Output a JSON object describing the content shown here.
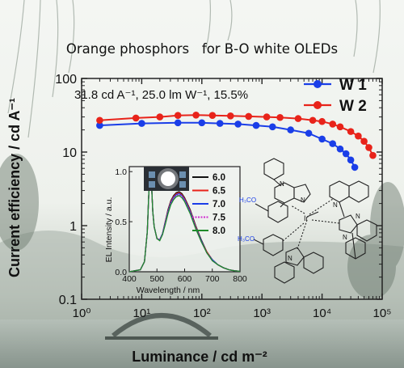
{
  "figure": {
    "title": "Orange phosphors   for B-O white OLEDs",
    "annotation": "31.8 cd A⁻¹, 25.0 lm W⁻¹, 15.5%",
    "xlabel": "Luminance / cd m⁻²",
    "ylabel": "Current efficiency / cd A⁻¹",
    "x_ticks": [
      "10⁰",
      "10¹",
      "10²",
      "10³",
      "10⁴",
      "10⁵"
    ],
    "y_ticks": [
      "0.1",
      "1",
      "10",
      "100"
    ],
    "colors": {
      "W1": "#1a3ee8",
      "W2": "#e8231a"
    },
    "molecule_labels": [
      "H₃CO",
      "H₃CO",
      "N",
      "N",
      "N",
      "N",
      "N",
      "N",
      "Ir"
    ]
  },
  "chart_data": [
    {
      "type": "line",
      "xscale": "log",
      "yscale": "log",
      "xlim": [
        1,
        100000
      ],
      "ylim": [
        0.1,
        100
      ],
      "legend": "top-right",
      "grid": false,
      "series": [
        {
          "name": "W 1",
          "color": "#1a3ee8",
          "marker": "circle",
          "x": [
            2,
            10,
            40,
            100,
            200,
            400,
            800,
            1500,
            3000,
            6000,
            10000,
            15000,
            20000,
            25000,
            30000,
            35000
          ],
          "y": [
            23,
            24.5,
            25,
            25,
            24.5,
            24,
            23,
            22,
            20,
            18,
            15,
            13,
            11,
            9.5,
            7.8,
            6.2
          ]
        },
        {
          "name": "W 2",
          "color": "#e8231a",
          "marker": "circle",
          "x": [
            2,
            8,
            20,
            40,
            80,
            150,
            300,
            600,
            1200,
            2000,
            4000,
            7000,
            10000,
            15000,
            20000,
            30000,
            40000,
            50000,
            60000,
            70000
          ],
          "y": [
            27,
            29,
            30,
            31.5,
            31.8,
            31.5,
            31,
            30.5,
            30,
            29.5,
            28.5,
            27,
            26,
            24,
            22,
            19,
            16.5,
            14,
            11.5,
            9
          ]
        }
      ]
    },
    {
      "type": "line",
      "xlabel": "Wavelength / nm",
      "ylabel": "EL Intensity / a.u.",
      "xlim": [
        400,
        800
      ],
      "ylim": [
        0,
        1.05
      ],
      "x_ticks": [
        "400",
        "500",
        "600",
        "700",
        "800"
      ],
      "y_ticks": [
        "0.0",
        "0.5",
        "1.0"
      ],
      "legend": "right",
      "series": [
        {
          "name": "6.0",
          "color": "#111111",
          "x": [
            400,
            440,
            455,
            465,
            470,
            475,
            480,
            485,
            490,
            500,
            510,
            520,
            530,
            540,
            550,
            560,
            570,
            580,
            590,
            600,
            620,
            640,
            660,
            680,
            700,
            720,
            740,
            760,
            780,
            800
          ],
          "y": [
            0,
            0.02,
            0.1,
            0.4,
            0.75,
            1.0,
            0.9,
            0.6,
            0.45,
            0.33,
            0.32,
            0.38,
            0.5,
            0.62,
            0.71,
            0.76,
            0.79,
            0.8,
            0.78,
            0.74,
            0.62,
            0.46,
            0.32,
            0.2,
            0.12,
            0.07,
            0.04,
            0.02,
            0.01,
            0.005
          ]
        },
        {
          "name": "6.5",
          "color": "#e8231a",
          "x": [
            400,
            440,
            455,
            465,
            470,
            475,
            480,
            485,
            490,
            500,
            510,
            520,
            530,
            540,
            550,
            560,
            570,
            580,
            590,
            600,
            620,
            640,
            660,
            680,
            700,
            720,
            740,
            760,
            780,
            800
          ],
          "y": [
            0,
            0.02,
            0.1,
            0.4,
            0.75,
            1.0,
            0.9,
            0.6,
            0.45,
            0.33,
            0.32,
            0.38,
            0.5,
            0.61,
            0.7,
            0.75,
            0.78,
            0.79,
            0.77,
            0.73,
            0.61,
            0.45,
            0.31,
            0.2,
            0.12,
            0.07,
            0.04,
            0.02,
            0.01,
            0.005
          ]
        },
        {
          "name": "7.0",
          "color": "#1a3ee8",
          "x": [
            400,
            440,
            455,
            465,
            470,
            475,
            480,
            485,
            490,
            500,
            510,
            520,
            530,
            540,
            550,
            560,
            570,
            580,
            590,
            600,
            620,
            640,
            660,
            680,
            700,
            720,
            740,
            760,
            780,
            800
          ],
          "y": [
            0,
            0.02,
            0.1,
            0.4,
            0.75,
            1.0,
            0.9,
            0.6,
            0.45,
            0.33,
            0.32,
            0.38,
            0.49,
            0.6,
            0.69,
            0.74,
            0.77,
            0.78,
            0.76,
            0.72,
            0.6,
            0.44,
            0.31,
            0.19,
            0.12,
            0.07,
            0.04,
            0.02,
            0.01,
            0.005
          ]
        },
        {
          "name": "7.5",
          "color": "#d02ad0",
          "x": [
            400,
            440,
            455,
            465,
            470,
            475,
            480,
            485,
            490,
            500,
            510,
            520,
            530,
            540,
            550,
            560,
            570,
            580,
            590,
            600,
            620,
            640,
            660,
            680,
            700,
            720,
            740,
            760,
            780,
            800
          ],
          "y": [
            0,
            0.02,
            0.1,
            0.4,
            0.75,
            1.0,
            0.9,
            0.6,
            0.45,
            0.33,
            0.32,
            0.37,
            0.48,
            0.59,
            0.68,
            0.73,
            0.76,
            0.77,
            0.75,
            0.71,
            0.59,
            0.44,
            0.3,
            0.19,
            0.11,
            0.07,
            0.04,
            0.02,
            0.01,
            0.005
          ]
        },
        {
          "name": "8.0",
          "color": "#1f8a2a",
          "x": [
            400,
            440,
            455,
            465,
            470,
            475,
            480,
            485,
            490,
            500,
            510,
            520,
            530,
            540,
            550,
            560,
            570,
            580,
            590,
            600,
            620,
            640,
            660,
            680,
            700,
            720,
            740,
            760,
            780,
            800
          ],
          "y": [
            0,
            0.02,
            0.1,
            0.4,
            0.75,
            1.0,
            0.9,
            0.6,
            0.45,
            0.33,
            0.31,
            0.37,
            0.47,
            0.58,
            0.67,
            0.72,
            0.75,
            0.76,
            0.74,
            0.7,
            0.58,
            0.43,
            0.3,
            0.19,
            0.11,
            0.07,
            0.04,
            0.02,
            0.01,
            0.005
          ]
        }
      ]
    }
  ]
}
